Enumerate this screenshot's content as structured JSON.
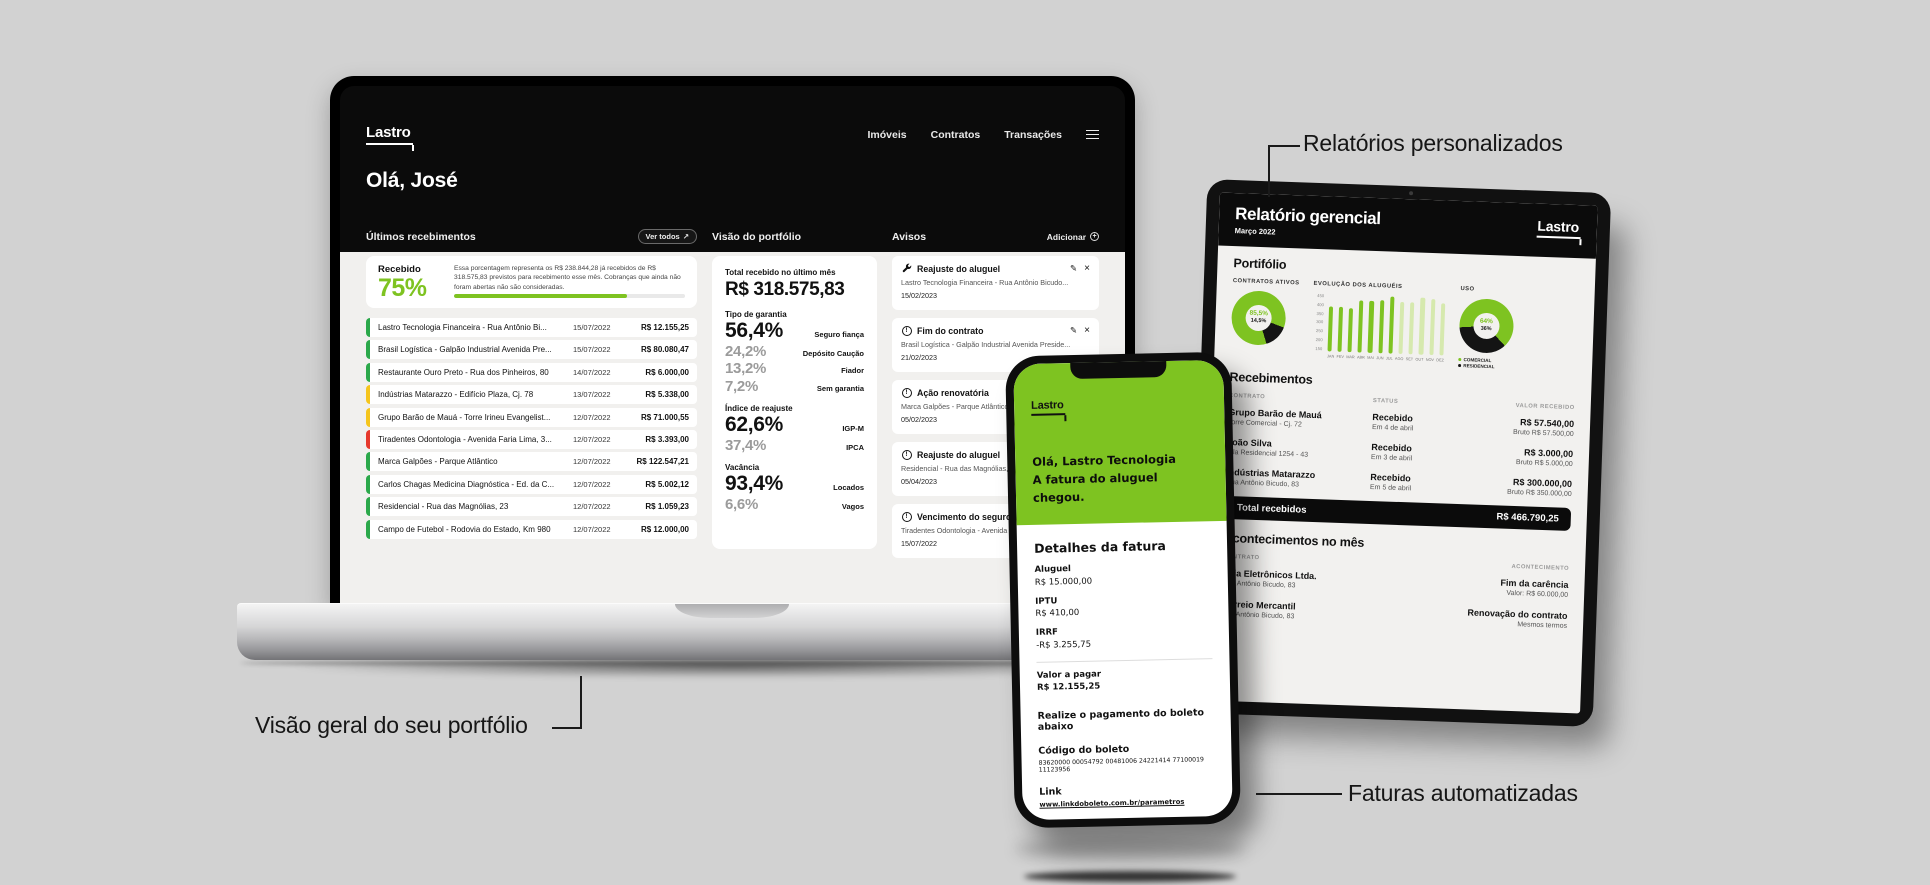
{
  "colors": {
    "accent": "#7ec321",
    "pale_bar": "#d6e9ae",
    "dark": "#141414",
    "status_green": "#2ba84a",
    "status_yellow": "#f5c51c",
    "status_red": "#e6392c"
  },
  "callouts": {
    "reports": "Relatórios personalizados",
    "portfolio": "Visão geral do seu portfólio",
    "invoices": "Faturas automatizadas"
  },
  "laptop": {
    "brand": "Lastro",
    "nav": [
      "Imóveis",
      "Contratos",
      "Transações"
    ],
    "greeting": "Olá, José",
    "receipts": {
      "title": "Últimos recebimentos",
      "view_all": "Ver todos",
      "view_all_icon": "↗",
      "received_label": "Recebido",
      "received_pct": "75%",
      "note": "Essa porcentagem representa os R$ 238.844,28 já recebidos de R$ 318.575,83 previstos para recebimento esse mês. Cobranças que ainda não foram abertas não são consideradas.",
      "progress_pct": 75,
      "rows": [
        {
          "name": "Lastro Tecnologia Financeira - Rua Antônio Bi...",
          "date": "15/07/2022",
          "value": "R$ 12.155,25",
          "status": "green"
        },
        {
          "name": "Brasil Logística - Galpão Industrial Avenida Pre...",
          "date": "15/07/2022",
          "value": "R$ 80.080,47",
          "status": "green"
        },
        {
          "name": "Restaurante Ouro Preto - Rua dos Pinheiros, 80",
          "date": "14/07/2022",
          "value": "R$ 6.000,00",
          "status": "green"
        },
        {
          "name": "Indústrias Matarazzo - Edifício Plaza, Cj. 78",
          "date": "13/07/2022",
          "value": "R$ 5.338,00",
          "status": "yellow"
        },
        {
          "name": "Grupo Barão de Mauá - Torre Irineu Evangelist...",
          "date": "12/07/2022",
          "value": "R$ 71.000,55",
          "status": "yellow"
        },
        {
          "name": "Tiradentes Odontologia - Avenida Faria Lima, 3...",
          "date": "12/07/2022",
          "value": "R$ 3.393,00",
          "status": "red"
        },
        {
          "name": "Marca Galpões - Parque Atlântico",
          "date": "12/07/2022",
          "value": "R$ 122.547,21",
          "status": "green"
        },
        {
          "name": "Carlos Chagas Medicina Diagnóstica - Ed. da C...",
          "date": "12/07/2022",
          "value": "R$ 5.002,12",
          "status": "green"
        },
        {
          "name": "Residencial - Rua das Magnólias, 23",
          "date": "12/07/2022",
          "value": "R$ 1.059,23",
          "status": "green"
        },
        {
          "name": "Campo de Futebol - Rodovia do Estado, Km 980",
          "date": "12/07/2022",
          "value": "R$ 12.000,00",
          "status": "green"
        }
      ]
    },
    "portfolio": {
      "title": "Visão do portfólio",
      "total_label": "Total recebido no último mês",
      "total_value": "R$ 318.575,83",
      "sections": [
        {
          "label": "Tipo de garantia",
          "items": [
            {
              "pct": "56,4%",
              "name": "Seguro fiança",
              "emphasis": true
            },
            {
              "pct": "24,2%",
              "name": "Depósito Caução"
            },
            {
              "pct": "13,2%",
              "name": "Fiador"
            },
            {
              "pct": "7,2%",
              "name": "Sem garantia"
            }
          ]
        },
        {
          "label": "Índice de reajuste",
          "items": [
            {
              "pct": "62,6%",
              "name": "IGP-M",
              "emphasis": true
            },
            {
              "pct": "37,4%",
              "name": "IPCA"
            }
          ]
        },
        {
          "label": "Vacância",
          "items": [
            {
              "pct": "93,4%",
              "name": "Locados",
              "emphasis": true
            },
            {
              "pct": "6,6%",
              "name": "Vagos"
            }
          ]
        }
      ]
    },
    "alerts": {
      "title": "Avisos",
      "add_label": "Adicionar",
      "items": [
        {
          "icon": "wrench",
          "title": "Reajuste do aluguel",
          "subtitle": "Lastro Tecnologia Financeira - Rua Antônio Bicudo...",
          "date": "15/02/2023",
          "actions": true
        },
        {
          "icon": "alert",
          "title": "Fim do contrato",
          "subtitle": "Brasil Logística - Galpão Industrial Avenida Preside...",
          "date": "21/02/2023",
          "actions": true
        },
        {
          "icon": "alert",
          "title": "Ação renovatória",
          "subtitle": "Marca Galpões - Parque Atlântico",
          "date": "05/02/2023",
          "actions": false
        },
        {
          "icon": "alert",
          "title": "Reajuste do aluguel",
          "subtitle": "Residencial - Rua das Magnólias, 23",
          "date": "05/04/2023",
          "actions": false
        },
        {
          "icon": "alert",
          "title": "Vencimento do seguro p",
          "subtitle": "Tiradentes Odontologia - Avenida Faria Lima, 3...",
          "date": "15/07/2022",
          "actions": false
        }
      ]
    }
  },
  "tablet": {
    "title": "Relatório gerencial",
    "subtitle": "Março 2022",
    "brand": "Lastro",
    "portfolio_heading": "Portifólio",
    "receipts_heading": "Recebimentos",
    "table_headers": [
      "CONTRATO",
      "STATUS",
      "VALOR RECEBIDO"
    ],
    "rows": [
      {
        "name": "Grupo Barão de Mauá",
        "address": "Torre Comercial - Cj. 72",
        "status": "Recebido",
        "status_sub": "Em 4 de abril",
        "value": "R$ 57.540,00",
        "value_sub": "Bruto R$ 57.500,00"
      },
      {
        "name": "João Silva",
        "address": "Vila Residencial 1254 - 43",
        "status": "Recebido",
        "status_sub": "Em 3 de abril",
        "value": "R$ 3.000,00",
        "value_sub": "Bruto R$ 5.000,00"
      },
      {
        "name": "Indústrias Matarazzo",
        "address": "Rua Antônio Bicudo, 83",
        "status": "Recebido",
        "status_sub": "Em 5 de abril",
        "value": "R$ 300.000,00",
        "value_sub": "Bruto R$ 350.000,00"
      }
    ],
    "total_label": "Total recebidos",
    "total_value": "R$ 466.790,25",
    "events_heading": "Acontecimentos no mês",
    "events_headers": [
      "CONTRATO",
      "ACONTECIMENTO"
    ],
    "events": [
      {
        "name": "Loja Eletrônicos Ltda.",
        "address": "Rua Antônio Bicudo, 83",
        "event": "Fim da carência",
        "detail": "Valor: R$ 60.000,00"
      },
      {
        "name": "Correio Mercantil",
        "address": "Rua Antônio Bicudo, 83",
        "event": "Renovação do contrato",
        "detail": "Mesmos termos"
      }
    ]
  },
  "phone": {
    "brand": "Lastro",
    "greeting_line1": "Olá, Lastro Tecnologia",
    "greeting_line2": "A fatura do aluguel chegou.",
    "invoice_heading": "Detalhes da fatura",
    "items": [
      {
        "label": "Aluguel",
        "value": "R$ 15.000,00"
      },
      {
        "label": "IPTU",
        "value": "R$ 410,00"
      },
      {
        "label": "IRRF",
        "value": "-R$ 3.255,75"
      },
      {
        "label": "Valor a pagar",
        "value": "R$ 12.155,25",
        "total": true
      }
    ],
    "pay_instruction": "Realize o pagamento do boleto abaixo",
    "boleto_label": "Código do boleto",
    "boleto_code": "83620000 00054792 00481006 24221414 77100019 11123956",
    "link_label": "Link",
    "link_url": "www.linkdoboleto.com.br/parametros"
  },
  "chart_data": [
    {
      "type": "pie",
      "title": "CONTRATOS ATIVOS",
      "values": [
        85.5,
        14.5
      ],
      "labels": [
        "85,5%",
        "14,5%"
      ],
      "colors": [
        "#7ec321",
        "#141414"
      ],
      "legend": [],
      "start_deg": 161
    },
    {
      "type": "bar",
      "title": "EVOLUÇÃO DOS ALUGUÉIS",
      "categories": [
        "JAN",
        "FEV",
        "MAR",
        "ABR",
        "MAI",
        "JUN",
        "JUL",
        "AGO",
        "SET",
        "OUT",
        "NOV",
        "DEZ"
      ],
      "values": [
        350,
        345,
        340,
        400,
        405,
        410,
        440,
        400,
        405,
        440,
        435,
        400
      ],
      "yticks": [
        "450",
        "400",
        "350",
        "300",
        "250",
        "200",
        "150"
      ],
      "ylim": [
        0,
        450
      ],
      "highlight_until": 7
    },
    {
      "type": "pie",
      "title": "USO",
      "values": [
        64,
        36
      ],
      "labels": [
        "64%",
        "36%"
      ],
      "colors": [
        "#7ec321",
        "#141414"
      ],
      "legend": [
        "COMERCIAL",
        "RESIDENCIAL"
      ],
      "start_deg": 265
    }
  ]
}
